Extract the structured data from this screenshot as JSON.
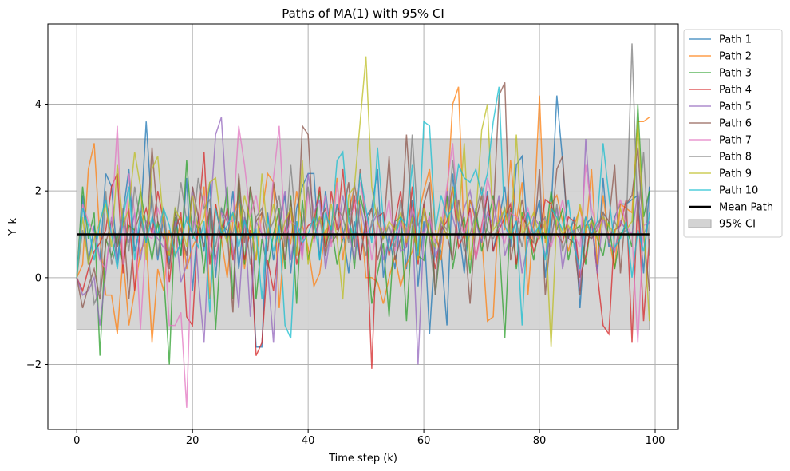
{
  "chart_data": {
    "type": "line",
    "title": "Paths of MA(1) with 95% CI",
    "xlabel": "Time step (k)",
    "ylabel": "Y_k",
    "xlim": [
      -5,
      104
    ],
    "ylim": [
      -3.5,
      5.85
    ],
    "xticks": [
      0,
      20,
      40,
      60,
      80,
      100
    ],
    "yticks": [
      -2,
      0,
      2,
      4
    ],
    "grid": true,
    "legend_position": "outside-upper-right",
    "x": [
      0,
      1,
      2,
      3,
      4,
      5,
      6,
      7,
      8,
      9,
      10,
      11,
      12,
      13,
      14,
      15,
      16,
      17,
      18,
      19,
      20,
      21,
      22,
      23,
      24,
      25,
      26,
      27,
      28,
      29,
      30,
      31,
      32,
      33,
      34,
      35,
      36,
      37,
      38,
      39,
      40,
      41,
      42,
      43,
      44,
      45,
      46,
      47,
      48,
      49,
      50,
      51,
      52,
      53,
      54,
      55,
      56,
      57,
      58,
      59,
      60,
      61,
      62,
      63,
      64,
      65,
      66,
      67,
      68,
      69,
      70,
      71,
      72,
      73,
      74,
      75,
      76,
      77,
      78,
      79,
      80,
      81,
      82,
      83,
      84,
      85,
      86,
      87,
      88,
      89,
      90,
      91,
      92,
      93,
      94,
      95,
      96,
      97,
      98,
      99
    ],
    "series": [
      {
        "name": "Path 1",
        "color": "#1f77b4",
        "values": [
          0.0,
          1.9,
          0.3,
          1.2,
          0.4,
          2.4,
          2.1,
          0.4,
          1.5,
          2.5,
          0.6,
          1.2,
          3.6,
          1.5,
          0.4,
          1.4,
          0.3,
          1.6,
          0.5,
          2.3,
          -0.3,
          1.4,
          0.6,
          2.2,
          0.0,
          1.6,
          0.8,
          2.0,
          0.2,
          1.4,
          0.9,
          -1.6,
          -1.6,
          1.5,
          0.4,
          1.2,
          1.9,
          0.1,
          1.6,
          2.1,
          2.4,
          2.4,
          0.4,
          2.0,
          0.9,
          1.7,
          1.1,
          0.1,
          1.3,
          0.4,
          1.4,
          1.6,
          2.5,
          0.0,
          1.0,
          0.2,
          1.4,
          0.2,
          1.8,
          -0.2,
          1.3,
          -1.3,
          0.9,
          0.6,
          -1.1,
          2.4,
          1.2,
          0.1,
          1.8,
          1.4,
          0.8,
          2.0,
          0.6,
          1.3,
          2.1,
          0.7,
          2.6,
          2.8,
          0.9,
          1.2,
          1.8,
          0.0,
          1.5,
          4.2,
          2.7,
          0.9,
          1.4,
          -0.7,
          1.2,
          1.4,
          0.2,
          2.3,
          0.7,
          1.4,
          1.7,
          1.7,
          1.8,
          1.9,
          0.1,
          2.1
        ]
      },
      {
        "name": "Path 2",
        "color": "#ff7f0e",
        "values": [
          0.0,
          0.3,
          2.5,
          3.1,
          0.9,
          -0.4,
          -0.4,
          -1.3,
          0.5,
          -1.1,
          -0.3,
          0.6,
          0.9,
          -1.5,
          0.2,
          -0.3,
          1.1,
          0.5,
          1.4,
          0.2,
          0.7,
          1.0,
          2.1,
          -0.5,
          1.7,
          0.9,
          0.0,
          1.3,
          1.9,
          0.2,
          1.3,
          0.4,
          1.5,
          2.4,
          2.2,
          -0.7,
          1.1,
          0.8,
          2.0,
          1.2,
          0.7,
          -0.2,
          0.1,
          1.1,
          1.2,
          2.3,
          0.4,
          1.5,
          2.1,
          1.6,
          0.0,
          0.0,
          -0.1,
          -0.6,
          0.0,
          0.5,
          -0.2,
          0.3,
          0.6,
          1.4,
          2.0,
          2.5,
          1.1,
          0.4,
          1.8,
          4.0,
          4.4,
          0.8,
          1.8,
          1.3,
          1.0,
          -1.0,
          -0.9,
          1.8,
          1.1,
          2.7,
          1.3,
          2.2,
          -0.4,
          1.3,
          4.2,
          0.8,
          1.7,
          1.9,
          1.3,
          0.6,
          1.2,
          1.6,
          1.0,
          2.5,
          0.3,
          1.9,
          0.9,
          0.2,
          1.7,
          1.6,
          1.5,
          3.6,
          3.6,
          3.7
        ]
      },
      {
        "name": "Path 3",
        "color": "#2ca02c",
        "values": [
          0.0,
          2.1,
          0.9,
          1.5,
          -1.8,
          0.9,
          0.5,
          1.0,
          0.3,
          1.2,
          1.1,
          2.0,
          1.2,
          0.4,
          1.3,
          0.1,
          -2.0,
          1.4,
          0.5,
          2.7,
          0.9,
          1.3,
          0.1,
          1.6,
          -1.2,
          1.0,
          2.1,
          -0.5,
          2.3,
          0.3,
          2.1,
          -0.5,
          0.9,
          0.2,
          1.0,
          1.6,
          0.2,
          1.9,
          -0.6,
          1.8,
          0.4,
          1.1,
          2.0,
          0.7,
          1.2,
          0.3,
          0.9,
          1.6,
          0.2,
          1.9,
          1.3,
          -0.6,
          0.1,
          0.8,
          -0.9,
          1.3,
          1.4,
          -1.0,
          1.2,
          0.5,
          0.4,
          1.5,
          -0.4,
          0.9,
          1.9,
          0.2,
          1.0,
          1.4,
          0.1,
          1.6,
          0.6,
          1.2,
          1.9,
          0.9,
          -1.4,
          1.6,
          0.2,
          1.5,
          1.1,
          0.4,
          1.3,
          0.9,
          2.0,
          1.1,
          1.6,
          0.4,
          1.1,
          1.2,
          0.3,
          1.4,
          0.9,
          0.5,
          1.3,
          0.2,
          1.0,
          1.2,
          0.7,
          4.0,
          1.4,
          2.0
        ]
      },
      {
        "name": "Path 4",
        "color": "#d62728",
        "values": [
          0.0,
          -0.3,
          0.2,
          0.6,
          0.8,
          1.1,
          2.1,
          2.4,
          0.1,
          1.6,
          -0.3,
          1.2,
          1.6,
          1.0,
          2.0,
          1.3,
          -0.1,
          1.1,
          1.5,
          -0.9,
          -1.1,
          1.3,
          2.9,
          0.3,
          1.7,
          0.9,
          1.6,
          0.4,
          1.3,
          0.4,
          1.1,
          -1.8,
          -1.5,
          0.4,
          -0.3,
          0.8,
          1.1,
          1.6,
          0.3,
          0.9,
          1.2,
          1.3,
          2.1,
          0.5,
          2.0,
          1.1,
          2.5,
          0.9,
          1.9,
          0.4,
          1.3,
          -2.1,
          1.4,
          1.5,
          0.5,
          1.3,
          2.0,
          0.7,
          2.1,
          0.3,
          1.7,
          0.9,
          0.2,
          1.1,
          1.3,
          2.1,
          0.7,
          1.0,
          1.6,
          0.4,
          1.2,
          1.9,
          0.6,
          1.1,
          1.4,
          1.7,
          0.3,
          1.4,
          1.2,
          0.6,
          1.0,
          1.8,
          1.7,
          1.0,
          0.8,
          1.4,
          1.3,
          0.0,
          0.5,
          1.3,
          0.1,
          -1.1,
          -1.3,
          1.1,
          1.2,
          1.8,
          -1.5,
          1.9,
          -1.0,
          0.9
        ]
      },
      {
        "name": "Path 5",
        "color": "#9467bd",
        "values": [
          0.0,
          -0.4,
          -0.3,
          0.0,
          -1.1,
          0.1,
          1.4,
          0.3,
          1.3,
          0.8,
          1.5,
          0.4,
          1.3,
          1.1,
          0.9,
          0.7,
          0.6,
          1.3,
          -0.1,
          0.3,
          2.1,
          0.0,
          -1.5,
          1.3,
          3.3,
          3.7,
          1.5,
          0.7,
          -0.7,
          1.4,
          -0.9,
          1.3,
          1.0,
          0.2,
          -1.5,
          1.3,
          2.0,
          0.4,
          1.3,
          0.5,
          2.4,
          1.5,
          1.8,
          0.2,
          1.1,
          0.9,
          1.9,
          1.1,
          0.4,
          1.7,
          1.0,
          1.2,
          1.5,
          0.4,
          0.9,
          1.3,
          0.6,
          0.7,
          1.4,
          -2.0,
          1.1,
          1.4,
          0.5,
          0.8,
          2.0,
          1.4,
          0.9,
          1.6,
          2.0,
          1.3,
          0.8,
          1.5,
          1.2,
          1.9,
          0.5,
          1.0,
          1.3,
          0.1,
          0.8,
          1.4,
          1.2,
          0.5,
          0.9,
          1.6,
          0.2,
          1.0,
          1.1,
          -0.3,
          3.2,
          1.3,
          0.1,
          1.4,
          0.8,
          0.6,
          1.3,
          1.1,
          1.0,
          2.0,
          1.0,
          1.3
        ]
      },
      {
        "name": "Path 6",
        "color": "#8c564b",
        "values": [
          0.0,
          -0.7,
          -0.2,
          0.2,
          -0.5,
          0.8,
          1.3,
          0.7,
          1.4,
          -0.5,
          1.1,
          1.5,
          0.8,
          3.0,
          1.3,
          0.9,
          0.2,
          1.5,
          1.1,
          0.5,
          2.1,
          1.4,
          0.7,
          1.6,
          0.4,
          1.2,
          1.1,
          -0.8,
          2.4,
          0.8,
          2.1,
          1.3,
          1.5,
          0.6,
          2.2,
          1.4,
          0.4,
          1.8,
          0.5,
          3.5,
          3.3,
          0.9,
          1.3,
          1.6,
          0.8,
          1.0,
          1.4,
          2.2,
          0.7,
          2.5,
          1.2,
          1.6,
          0.4,
          1.0,
          2.8,
          0.4,
          0.9,
          3.3,
          1.3,
          0.6,
          1.7,
          2.2,
          -0.4,
          1.2,
          1.0,
          0.4,
          1.8,
          1.0,
          -0.6,
          1.3,
          1.9,
          0.6,
          1.4,
          4.2,
          4.5,
          0.4,
          1.1,
          1.8,
          1.0,
          0.8,
          2.5,
          -0.4,
          1.1,
          2.5,
          2.8,
          0.9,
          0.8,
          -0.4,
          1.0,
          0.9,
          1.1,
          1.5,
          1.3,
          2.6,
          0.1,
          1.7,
          1.9,
          3.0,
          1.0,
          -0.3
        ]
      },
      {
        "name": "Path 7",
        "color": "#e377c2",
        "values": [
          0.0,
          1.7,
          1.3,
          1.0,
          0.4,
          0.2,
          1.2,
          3.5,
          0.3,
          2.4,
          1.5,
          -1.2,
          1.0,
          0.9,
          1.6,
          1.2,
          -1.1,
          -1.1,
          -0.8,
          -3.0,
          1.3,
          1.2,
          1.9,
          0.8,
          0.3,
          1.5,
          1.3,
          1.3,
          3.5,
          2.6,
          1.4,
          1.9,
          1.0,
          0.9,
          2.3,
          3.5,
          0.9,
          1.3,
          1.2,
          0.4,
          2.0,
          0.8,
          1.3,
          1.9,
          0.7,
          2.2,
          0.9,
          1.4,
          1.6,
          2.2,
          1.5,
          0.4,
          1.2,
          1.1,
          1.8,
          0.6,
          1.3,
          0.9,
          1.6,
          1.2,
          1.0,
          1.4,
          0.8,
          1.2,
          2.1,
          3.1,
          1.3,
          1.0,
          1.5,
          0.4,
          1.1,
          2.3,
          1.7,
          1.1,
          0.8,
          1.5,
          1.4,
          1.2,
          1.6,
          1.0,
          0.9,
          1.3,
          0.7,
          1.2,
          1.8,
          1.1,
          1.0,
          0.7,
          2.6,
          1.6,
          1.1,
          1.4,
          0.9,
          1.3,
          1.8,
          1.2,
          1.0,
          -1.5,
          1.2,
          1.3
        ]
      },
      {
        "name": "Path 8",
        "color": "#7f7f7f",
        "values": [
          0.0,
          1.1,
          0.5,
          -0.6,
          -0.3,
          2.0,
          0.3,
          0.8,
          1.6,
          0.6,
          2.1,
          1.3,
          0.8,
          1.9,
          0.5,
          1.6,
          0.5,
          1.0,
          2.2,
          1.3,
          1.0,
          2.3,
          1.6,
          1.8,
          0.7,
          1.6,
          1.3,
          1.0,
          1.8,
          1.5,
          0.3,
          1.4,
          1.6,
          1.0,
          1.3,
          1.9,
          0.7,
          2.6,
          1.0,
          1.2,
          2.1,
          0.9,
          1.4,
          0.5,
          1.1,
          1.6,
          1.4,
          0.8,
          2.2,
          1.1,
          0.5,
          1.3,
          1.6,
          0.9,
          1.2,
          0.7,
          1.8,
          1.0,
          3.3,
          1.2,
          1.5,
          0.9,
          -0.4,
          1.3,
          1.1,
          2.7,
          1.4,
          0.6,
          1.0,
          1.5,
          2.1,
          1.1,
          0.9,
          1.2,
          1.6,
          1.0,
          1.3,
          0.7,
          1.5,
          0.9,
          1.2,
          1.4,
          0.8,
          1.7,
          0.6,
          1.1,
          1.3,
          1.0,
          1.4,
          0.9,
          1.2,
          1.5,
          0.8,
          1.3,
          1.0,
          1.1,
          5.4,
          1.3,
          2.9,
          0.5
        ]
      },
      {
        "name": "Path 9",
        "color": "#bcbd22",
        "values": [
          0.0,
          1.4,
          0.3,
          0.9,
          1.3,
          1.7,
          0.7,
          2.6,
          1.2,
          1.6,
          2.9,
          2.1,
          0.4,
          2.5,
          2.8,
          1.2,
          0.5,
          1.6,
          1.3,
          0.7,
          1.9,
          1.1,
          1.4,
          2.2,
          2.3,
          1.2,
          0.8,
          1.5,
          1.0,
          1.9,
          1.3,
          0.4,
          2.4,
          1.0,
          1.7,
          0.8,
          1.3,
          1.6,
          0.5,
          2.7,
          0.3,
          1.1,
          1.4,
          0.9,
          1.7,
          0.9,
          -0.5,
          1.9,
          2.1,
          3.6,
          5.1,
          2.1,
          1.3,
          0.9,
          1.3,
          1.1,
          1.5,
          0.8,
          1.4,
          0.4,
          1.6,
          1.0,
          0.7,
          1.4,
          0.9,
          2.1,
          1.3,
          3.1,
          0.4,
          1.4,
          3.4,
          4.0,
          1.1,
          1.3,
          1.6,
          0.9,
          3.3,
          1.0,
          1.2,
          1.5,
          0.9,
          1.3,
          -1.6,
          1.4,
          1.0,
          1.2,
          0.9,
          1.7,
          1.1,
          1.3,
          0.9,
          1.4,
          1.2,
          1.0,
          1.6,
          1.1,
          1.3,
          3.6,
          1.2,
          -1.0
        ]
      },
      {
        "name": "Path 10",
        "color": "#17becf",
        "values": [
          0.0,
          1.6,
          1.2,
          0.4,
          1.3,
          1.8,
          1.0,
          0.2,
          1.4,
          2.1,
          0.4,
          1.5,
          0.8,
          1.4,
          1.0,
          1.6,
          1.2,
          0.5,
          0.8,
          1.4,
          1.0,
          0.7,
          1.3,
          -0.8,
          1.6,
          1.0,
          1.2,
          1.5,
          0.7,
          1.3,
          0.9,
          1.1,
          -0.5,
          1.4,
          0.6,
          1.2,
          -1.1,
          -1.4,
          1.3,
          0.8,
          1.0,
          1.4,
          0.4,
          1.5,
          1.1,
          2.7,
          2.9,
          1.3,
          0.9,
          2.4,
          1.6,
          0.8,
          3.0,
          1.3,
          0.6,
          0.9,
          1.4,
          1.2,
          2.6,
          0.5,
          3.6,
          3.5,
          1.1,
          1.9,
          1.4,
          1.6,
          2.6,
          2.3,
          2.2,
          2.5,
          1.9,
          2.4,
          3.6,
          4.4,
          1.2,
          0.9,
          1.3,
          -1.1,
          1.5,
          1.0,
          1.2,
          0.4,
          1.6,
          1.4,
          1.1,
          1.8,
          0.7,
          0.2,
          1.4,
          1.0,
          1.3,
          3.1,
          1.9,
          0.7,
          0.9,
          1.3,
          0.0,
          1.1,
          0.6,
          1.5
        ]
      }
    ],
    "mean_path": {
      "name": "Mean Path",
      "color": "#000000",
      "value": 1.0
    },
    "ci_band": {
      "name": "95% CI",
      "color": "#d3d3d3",
      "lower": -1.2,
      "upper": 3.2
    }
  }
}
